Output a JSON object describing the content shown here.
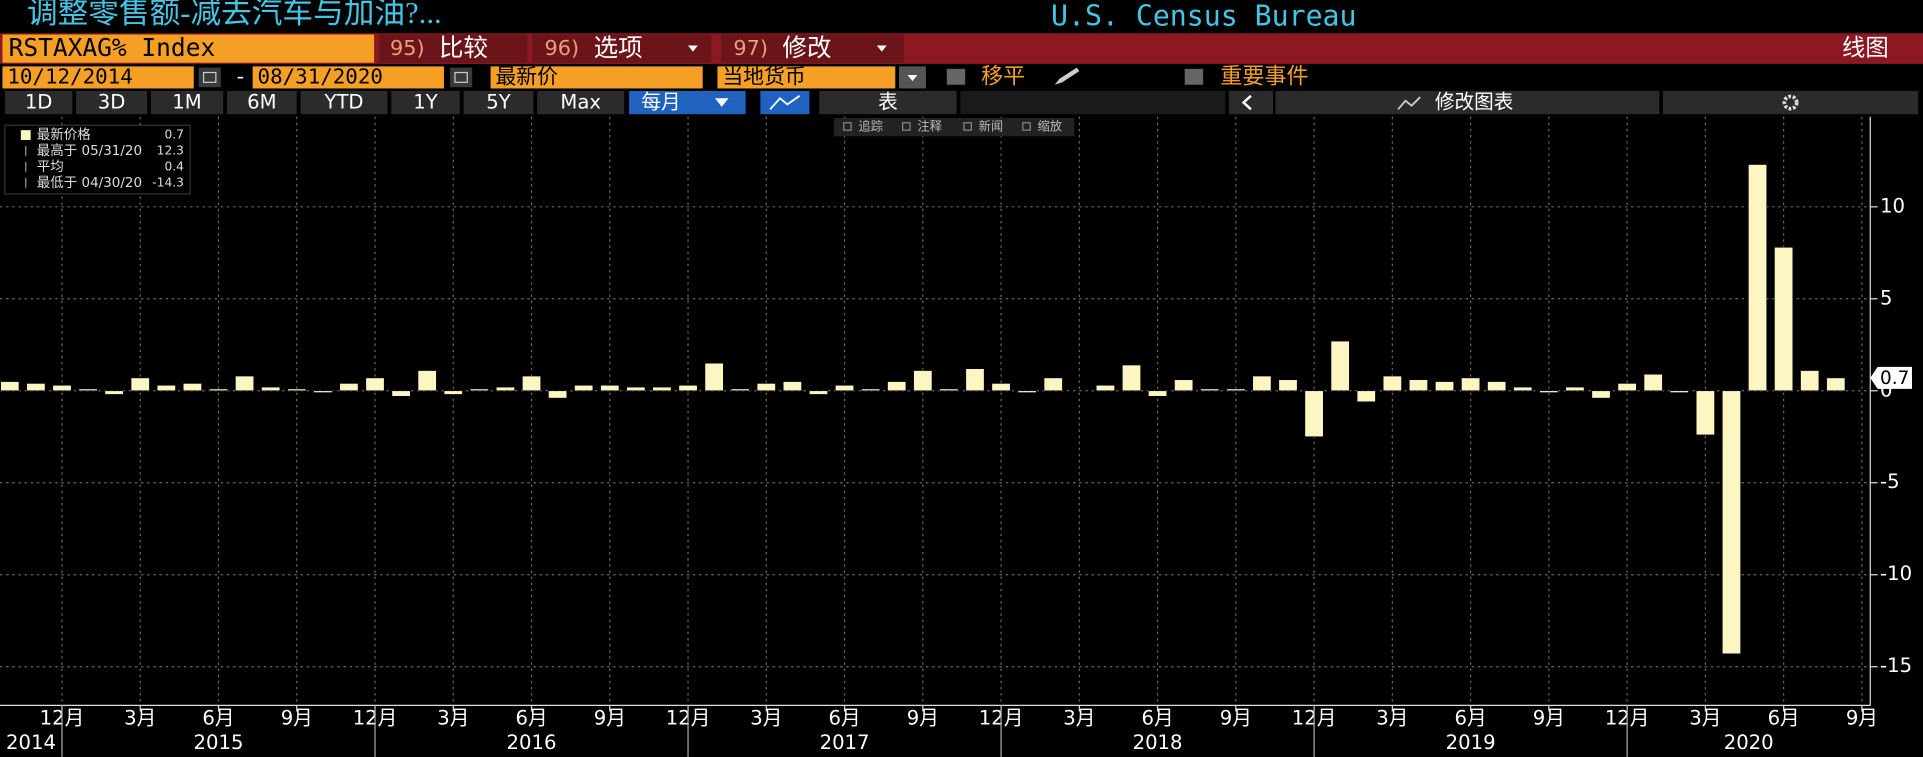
{
  "header": {
    "title": "调整零售额-减去汽车与加油?...",
    "source": "U.S. Census Bureau"
  },
  "toolbar": {
    "ticker": "RSTAXAG% Index",
    "compare": {
      "num": "95)",
      "label": "比较"
    },
    "options": {
      "num": "96)",
      "label": "选项"
    },
    "modify": {
      "num": "97)",
      "label": "修改"
    },
    "view": "线图"
  },
  "controls": {
    "start_date": "10/12/2014",
    "date_separator": "-",
    "end_date": "08/31/2020",
    "price": "最新价",
    "currency": "当地货币",
    "smooth": "移平",
    "events": "重要事件"
  },
  "ranges": [
    "1D",
    "3D",
    "1M",
    "6M",
    "YTD",
    "1Y",
    "5Y",
    "Max"
  ],
  "frequency": "每月",
  "table": "表",
  "edit_chart": "修改图表",
  "chart_tools": [
    "追踪",
    "注释",
    "新闻",
    "缩放"
  ],
  "chart_data": {
    "type": "bar",
    "color": "#fdf6c3",
    "grid": true,
    "categories": [
      null,
      null,
      "12月",
      null,
      null,
      "3月",
      null,
      null,
      "6月",
      null,
      null,
      "9月",
      null,
      null,
      "12月",
      null,
      null,
      "3月",
      null,
      null,
      "6月",
      null,
      null,
      "9月",
      null,
      null,
      "12月",
      null,
      null,
      "3月",
      null,
      null,
      "6月",
      null,
      null,
      "9月",
      null,
      null,
      "12月",
      null,
      null,
      "3月",
      null,
      null,
      "6月",
      null,
      null,
      "9月",
      null,
      null,
      "12月",
      null,
      null,
      "3月",
      null,
      null,
      "6月",
      null,
      null,
      "9月",
      null,
      null,
      "12月",
      null,
      null,
      "3月",
      null,
      null,
      "6月",
      null,
      null,
      "9月"
    ],
    "values": [
      0.5,
      0.4,
      0.3,
      0.1,
      -0.2,
      0.7,
      0.3,
      0.4,
      0.1,
      0.8,
      0.2,
      0.1,
      -0.1,
      0.4,
      0.7,
      -0.3,
      1.1,
      -0.2,
      0.1,
      0.2,
      0.8,
      -0.4,
      0.3,
      0.3,
      0.2,
      0.2,
      0.3,
      1.5,
      0.1,
      0.4,
      0.5,
      -0.2,
      0.3,
      0.1,
      0.5,
      1.1,
      0.1,
      1.2,
      0.4,
      -0.1,
      0.7,
      0.0,
      0.3,
      1.4,
      -0.3,
      0.6,
      0.1,
      0.1,
      0.8,
      0.6,
      -2.5,
      2.7,
      -0.6,
      0.8,
      0.6,
      0.5,
      0.7,
      0.5,
      0.2,
      -0.1,
      0.2,
      -0.4,
      0.4,
      0.9,
      -0.1,
      -2.4,
      -14.3,
      12.3,
      7.8,
      1.1,
      0.7,
      null
    ],
    "year_labels": [
      "2014",
      "2015",
      "2016",
      "2017",
      "2018",
      "2019",
      "2020"
    ],
    "ylim": [
      -17.1,
      14.9
    ],
    "yticks": [
      -15,
      -10,
      -5,
      0,
      5,
      10
    ],
    "stats": [
      {
        "label": "最新价格",
        "value": 0.7
      },
      {
        "label": "最高于 05/31/20",
        "value": 12.3
      },
      {
        "label": "平均",
        "value": 0.4
      },
      {
        "label": "最低于 04/30/20",
        "value": -14.3
      }
    ]
  }
}
